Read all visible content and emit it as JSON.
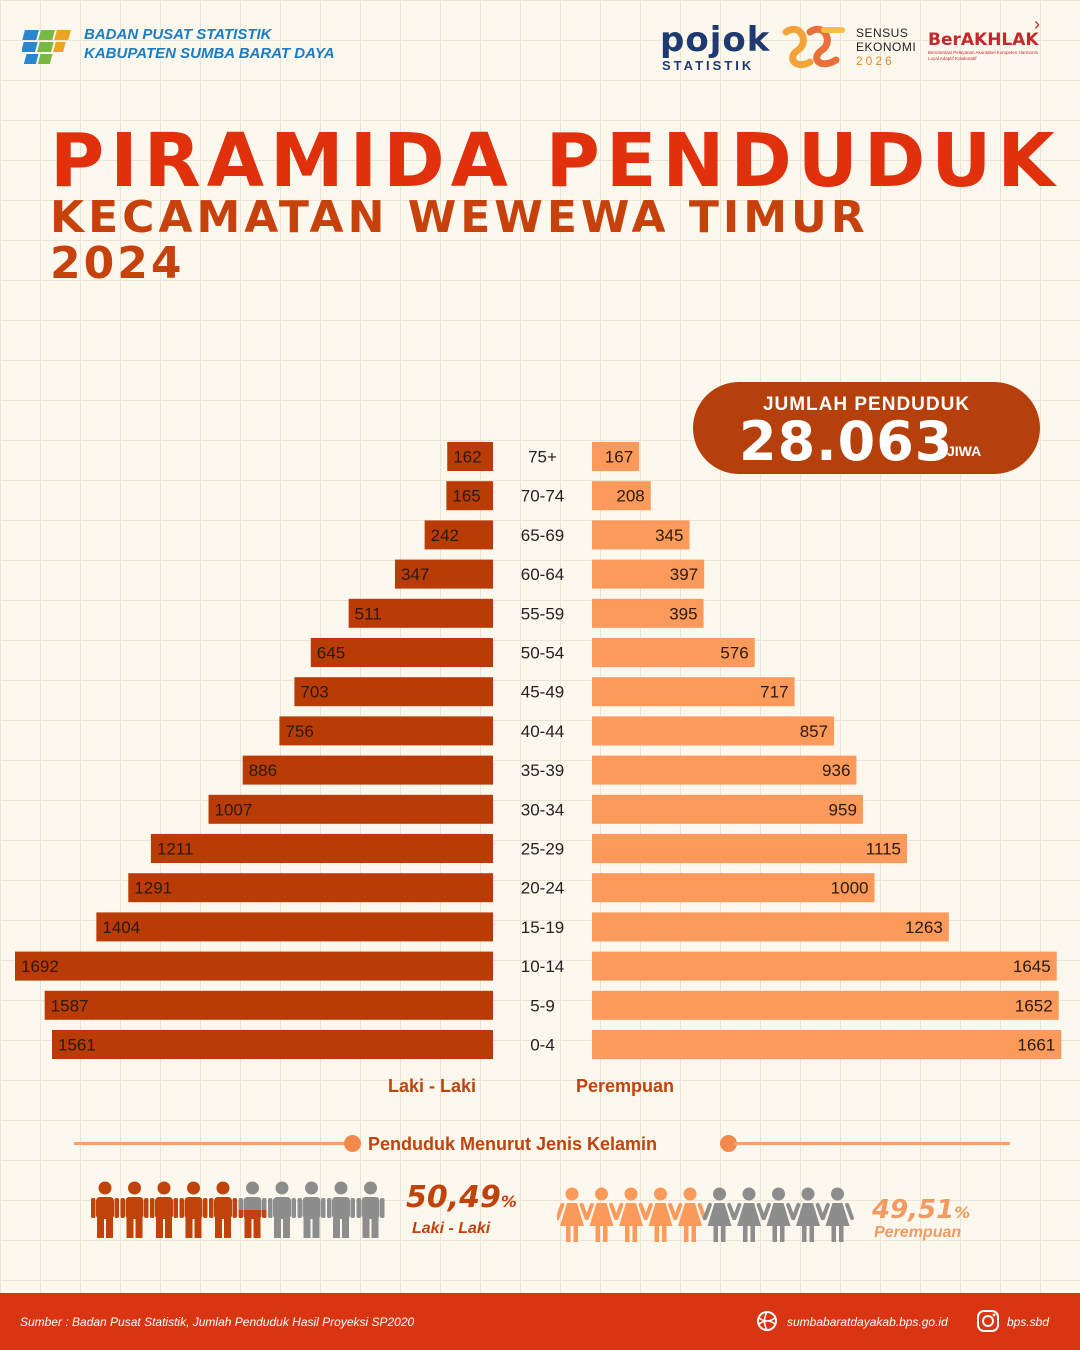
{
  "header": {
    "org_line1": "BADAN PUSAT STATISTIK",
    "org_line2": "KABUPATEN SUMBA BARAT DAYA",
    "logos": {
      "pojok_word": "pojok",
      "pojok_sub": "STATISTIK",
      "sensus_line1": "SENSUS",
      "sensus_line2": "EKONOMI",
      "sensus_year": "2026",
      "berakhlak_word": "BerAKHLAK",
      "berakhlak_sub": "Berorientasi Pelayanan Akuntabel Kompeten Harmonis Loyal Adaptif Kolaboratif"
    }
  },
  "title": {
    "line1": "PIRAMIDA PENDUDUK",
    "line2": "KECAMATAN WEWEWA TIMUR",
    "line3": "2024"
  },
  "total": {
    "label": "JUMLAH PENDUDUK",
    "value": "28.063",
    "unit": "JIWA"
  },
  "chart_data": {
    "type": "bar",
    "orientation": "horizontal-pyramid",
    "categories": [
      "75+",
      "70-74",
      "65-69",
      "60-64",
      "55-59",
      "50-54",
      "45-49",
      "40-44",
      "35-39",
      "30-34",
      "25-29",
      "20-24",
      "15-19",
      "10-14",
      "5-9",
      "0-4"
    ],
    "series": [
      {
        "name": "Laki - Laki",
        "color": "#b93c07",
        "values": [
          162,
          165,
          242,
          347,
          511,
          645,
          703,
          756,
          886,
          1007,
          1211,
          1291,
          1404,
          1692,
          1587,
          1561
        ]
      },
      {
        "name": "Perempuan",
        "color": "#fb9a5a",
        "values": [
          167,
          208,
          345,
          397,
          395,
          576,
          717,
          857,
          936,
          959,
          1115,
          1000,
          1263,
          1645,
          1652,
          1661
        ]
      }
    ],
    "xlim": [
      0,
      1692
    ]
  },
  "legend": {
    "male": "Laki - Laki",
    "female": "Perempuan"
  },
  "sex_section": {
    "title": "Penduduk Menurut Jenis Kelamin",
    "male": {
      "value": "50,49",
      "unit": "%",
      "label": "Laki - Laki",
      "icons_total": 10,
      "icons_filled": 5.5,
      "color": "#c0430b"
    },
    "female": {
      "value": "49,51",
      "unit": "%",
      "label": "Perempuan",
      "icons_total": 10,
      "icons_filled": 5,
      "color": "#fb9a5a"
    },
    "inactive_color": "#8d8d8d"
  },
  "footer": {
    "source": "Sumber : Badan Pusat Statistik, Jumlah Penduduk Hasil Proyeksi SP2020",
    "website": "sumbabaratdayakab.bps.go.id",
    "instagram": "bps.sbd"
  }
}
